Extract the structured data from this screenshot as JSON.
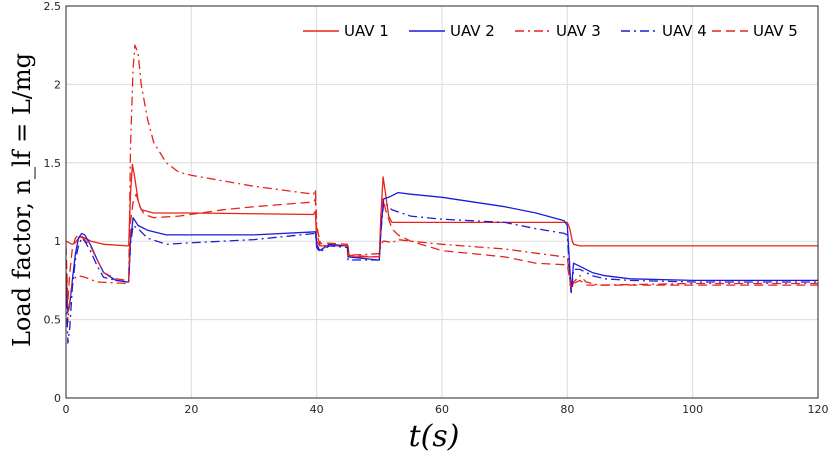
{
  "chart_data": {
    "type": "line",
    "title": "",
    "xlabel": "t(s)",
    "ylabel": "Load factor, n_lf = L/mg",
    "xlim": [
      0,
      120
    ],
    "ylim": [
      0,
      2.5
    ],
    "xticks": [
      0,
      20,
      40,
      60,
      80,
      100,
      120
    ],
    "yticks": [
      0,
      0.5,
      1,
      1.5,
      2,
      2.5
    ],
    "xtick_labels": [
      "0",
      "20",
      "40",
      "60",
      "80",
      "100",
      "120"
    ],
    "ytick_labels": [
      "0",
      "0.5",
      "1",
      "1.5",
      "2",
      "2.5"
    ],
    "grid": true,
    "legend_position": "top-right",
    "series": [
      {
        "name": "UAV 1",
        "color": "#e8221b",
        "dash": "solid",
        "points": [
          [
            0,
            1.0
          ],
          [
            0.5,
            0.99
          ],
          [
            1,
            0.98
          ],
          [
            1.5,
            0.99
          ],
          [
            2,
            1.02
          ],
          [
            2.5,
            1.03
          ],
          [
            3,
            1.02
          ],
          [
            4,
            1.0
          ],
          [
            6,
            0.98
          ],
          [
            9.8,
            0.97
          ],
          [
            10,
            0.97
          ],
          [
            10.3,
            1.3
          ],
          [
            10.6,
            1.49
          ],
          [
            11,
            1.4
          ],
          [
            11.5,
            1.26
          ],
          [
            12,
            1.2
          ],
          [
            14,
            1.18
          ],
          [
            20,
            1.18
          ],
          [
            39.5,
            1.17
          ],
          [
            39.8,
            1.19
          ],
          [
            40,
            1.0
          ],
          [
            40.5,
            0.97
          ],
          [
            44,
            0.97
          ],
          [
            45,
            0.97
          ],
          [
            45.2,
            0.9
          ],
          [
            49.8,
            0.9
          ],
          [
            50,
            0.9
          ],
          [
            50.3,
            1.2
          ],
          [
            50.6,
            1.41
          ],
          [
            51,
            1.3
          ],
          [
            51.5,
            1.16
          ],
          [
            52,
            1.12
          ],
          [
            60,
            1.12
          ],
          [
            79.5,
            1.12
          ],
          [
            80,
            1.12
          ],
          [
            80.4,
            1.08
          ],
          [
            80.8,
            1.0
          ],
          [
            81,
            0.98
          ],
          [
            82,
            0.97
          ],
          [
            120,
            0.97
          ]
        ]
      },
      {
        "name": "UAV 2",
        "color": "#1c1cdb",
        "dash": "solid",
        "points": [
          [
            0,
            0.8
          ],
          [
            0.3,
            0.55
          ],
          [
            0.6,
            0.6
          ],
          [
            1,
            0.75
          ],
          [
            1.5,
            0.92
          ],
          [
            2,
            1.02
          ],
          [
            2.5,
            1.05
          ],
          [
            3,
            1.04
          ],
          [
            4,
            0.97
          ],
          [
            5,
            0.88
          ],
          [
            6,
            0.8
          ],
          [
            8,
            0.75
          ],
          [
            9.8,
            0.74
          ],
          [
            10,
            0.74
          ],
          [
            10.3,
            1.0
          ],
          [
            10.7,
            1.15
          ],
          [
            11.5,
            1.1
          ],
          [
            13,
            1.07
          ],
          [
            16,
            1.04
          ],
          [
            20,
            1.04
          ],
          [
            30,
            1.04
          ],
          [
            39.8,
            1.06
          ],
          [
            40,
            0.98
          ],
          [
            40.5,
            0.94
          ],
          [
            42,
            0.98
          ],
          [
            44.9,
            0.97
          ],
          [
            45,
            0.9
          ],
          [
            49.8,
            0.88
          ],
          [
            50,
            0.88
          ],
          [
            50.3,
            1.1
          ],
          [
            50.7,
            1.27
          ],
          [
            51.5,
            1.28
          ],
          [
            53,
            1.31
          ],
          [
            55,
            1.3
          ],
          [
            60,
            1.28
          ],
          [
            70,
            1.22
          ],
          [
            75,
            1.18
          ],
          [
            79.5,
            1.13
          ],
          [
            80,
            1.1
          ],
          [
            80.3,
            0.9
          ],
          [
            80.6,
            0.68
          ],
          [
            81,
            0.86
          ],
          [
            82,
            0.84
          ],
          [
            84,
            0.8
          ],
          [
            86,
            0.78
          ],
          [
            90,
            0.76
          ],
          [
            100,
            0.75
          ],
          [
            120,
            0.75
          ]
        ]
      },
      {
        "name": "UAV 3",
        "color": "#e8221b",
        "dash": "dashdot",
        "points": [
          [
            0,
            0.88
          ],
          [
            0.3,
            0.48
          ],
          [
            0.6,
            0.62
          ],
          [
            1,
            0.74
          ],
          [
            1.5,
            0.77
          ],
          [
            2,
            0.78
          ],
          [
            3,
            0.77
          ],
          [
            5,
            0.74
          ],
          [
            9.8,
            0.73
          ],
          [
            10,
            0.73
          ],
          [
            10.3,
            1.6
          ],
          [
            10.7,
            2.1
          ],
          [
            11,
            2.25
          ],
          [
            11.5,
            2.2
          ],
          [
            12,
            2.0
          ],
          [
            13,
            1.78
          ],
          [
            14,
            1.63
          ],
          [
            16,
            1.5
          ],
          [
            18,
            1.44
          ],
          [
            20,
            1.42
          ],
          [
            30,
            1.35
          ],
          [
            39.5,
            1.3
          ],
          [
            39.8,
            1.33
          ],
          [
            40,
            1.1
          ],
          [
            40.5,
            1.0
          ],
          [
            41,
            0.97
          ],
          [
            44.9,
            0.97
          ],
          [
            45,
            0.91
          ],
          [
            49.8,
            0.92
          ],
          [
            50,
            0.92
          ],
          [
            50.3,
            0.98
          ],
          [
            50.6,
            1.0
          ],
          [
            51,
            1.0
          ],
          [
            52,
            0.99
          ],
          [
            53,
            1.01
          ],
          [
            55,
            1.0
          ],
          [
            60,
            0.98
          ],
          [
            70,
            0.95
          ],
          [
            79.5,
            0.9
          ],
          [
            80,
            0.9
          ],
          [
            80.3,
            0.8
          ],
          [
            80.6,
            0.68
          ],
          [
            81,
            0.74
          ],
          [
            82,
            0.78
          ],
          [
            83,
            0.74
          ],
          [
            85,
            0.72
          ],
          [
            100,
            0.73
          ],
          [
            120,
            0.73
          ]
        ]
      },
      {
        "name": "UAV 4",
        "color": "#1c1cdb",
        "dash": "dashdot",
        "points": [
          [
            0,
            0.75
          ],
          [
            0.3,
            0.35
          ],
          [
            0.6,
            0.45
          ],
          [
            1,
            0.7
          ],
          [
            1.5,
            0.88
          ],
          [
            2,
            0.97
          ],
          [
            2.5,
            1.02
          ],
          [
            3,
            1.0
          ],
          [
            4,
            0.93
          ],
          [
            5,
            0.84
          ],
          [
            6,
            0.77
          ],
          [
            8,
            0.75
          ],
          [
            9.8,
            0.74
          ],
          [
            10,
            0.74
          ],
          [
            10.3,
            0.98
          ],
          [
            10.7,
            1.1
          ],
          [
            11.5,
            1.08
          ],
          [
            13,
            1.02
          ],
          [
            16,
            0.98
          ],
          [
            20,
            0.99
          ],
          [
            30,
            1.01
          ],
          [
            39.8,
            1.05
          ],
          [
            40,
            0.96
          ],
          [
            40.5,
            0.93
          ],
          [
            42,
            0.97
          ],
          [
            44.9,
            0.96
          ],
          [
            45,
            0.88
          ],
          [
            49.8,
            0.88
          ],
          [
            50,
            0.88
          ],
          [
            50.3,
            1.08
          ],
          [
            50.7,
            1.25
          ],
          [
            52,
            1.2
          ],
          [
            55,
            1.16
          ],
          [
            60,
            1.14
          ],
          [
            70,
            1.12
          ],
          [
            75,
            1.08
          ],
          [
            79.5,
            1.05
          ],
          [
            80,
            1.04
          ],
          [
            80.3,
            0.85
          ],
          [
            80.6,
            0.66
          ],
          [
            81,
            0.82
          ],
          [
            82,
            0.82
          ],
          [
            84,
            0.78
          ],
          [
            86,
            0.76
          ],
          [
            90,
            0.75
          ],
          [
            100,
            0.74
          ],
          [
            120,
            0.74
          ]
        ]
      },
      {
        "name": "UAV 5",
        "color": "#e8221b",
        "dash": "dashed",
        "points": [
          [
            0,
            0.97
          ],
          [
            0.3,
            0.62
          ],
          [
            0.6,
            0.8
          ],
          [
            1,
            0.95
          ],
          [
            1.5,
            1.02
          ],
          [
            2,
            1.04
          ],
          [
            3,
            1.01
          ],
          [
            4,
            0.96
          ],
          [
            5,
            0.88
          ],
          [
            6,
            0.8
          ],
          [
            8,
            0.76
          ],
          [
            9.8,
            0.75
          ],
          [
            10,
            0.75
          ],
          [
            10.3,
            1.12
          ],
          [
            10.7,
            1.25
          ],
          [
            11.2,
            1.3
          ],
          [
            11.8,
            1.22
          ],
          [
            12.5,
            1.17
          ],
          [
            14,
            1.15
          ],
          [
            18,
            1.16
          ],
          [
            25,
            1.2
          ],
          [
            30,
            1.22
          ],
          [
            39.5,
            1.25
          ],
          [
            39.8,
            1.27
          ],
          [
            40,
            1.05
          ],
          [
            40.5,
            0.98
          ],
          [
            41,
            0.99
          ],
          [
            44.9,
            0.98
          ],
          [
            45,
            0.91
          ],
          [
            49.8,
            0.9
          ],
          [
            50,
            0.9
          ],
          [
            50.3,
            1.2
          ],
          [
            50.6,
            1.27
          ],
          [
            51,
            1.2
          ],
          [
            52,
            1.08
          ],
          [
            53,
            1.04
          ],
          [
            55,
            1.0
          ],
          [
            60,
            0.94
          ],
          [
            70,
            0.9
          ],
          [
            75,
            0.86
          ],
          [
            79.5,
            0.85
          ],
          [
            80,
            0.85
          ],
          [
            80.3,
            0.78
          ],
          [
            80.6,
            0.7
          ],
          [
            81,
            0.73
          ],
          [
            82,
            0.75
          ],
          [
            83,
            0.72
          ],
          [
            85,
            0.72
          ],
          [
            100,
            0.72
          ],
          [
            120,
            0.72
          ]
        ]
      }
    ]
  }
}
